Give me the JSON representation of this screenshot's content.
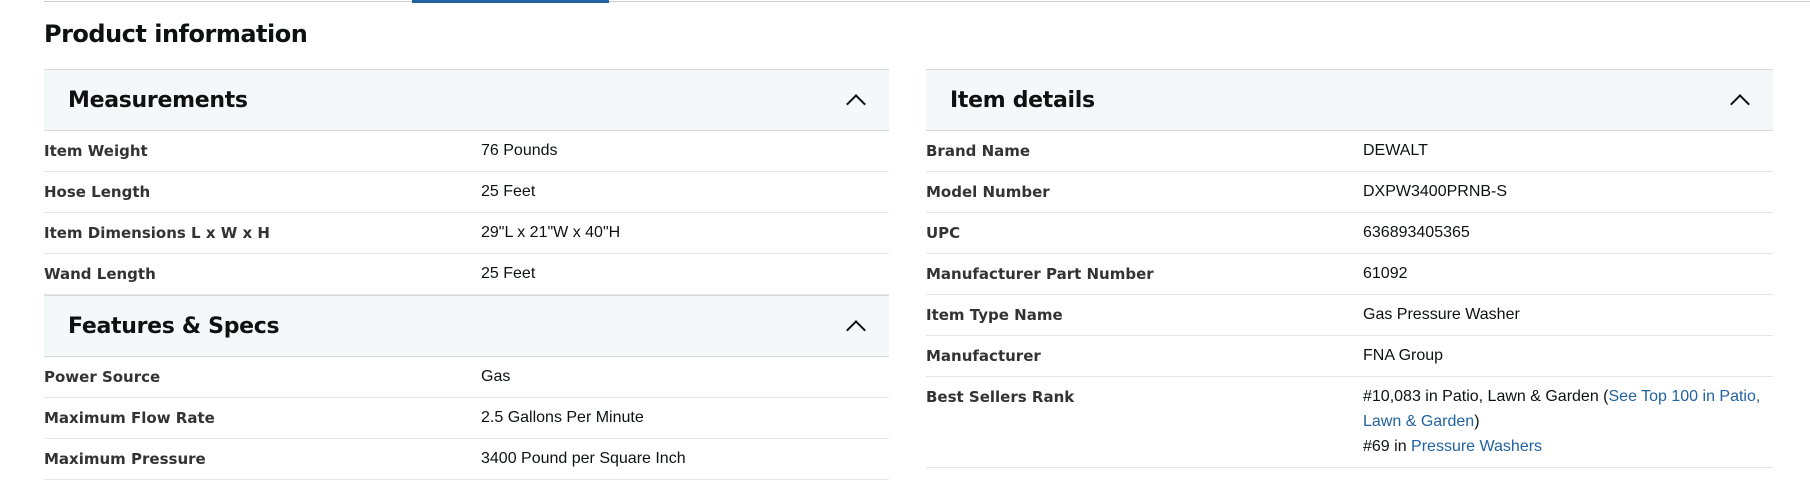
{
  "title": "Product information",
  "measurements": {
    "title": "Measurements",
    "rows": [
      {
        "k": "Item Weight",
        "v": "76 Pounds"
      },
      {
        "k": "Hose Length",
        "v": "25 Feet"
      },
      {
        "k": "Item Dimensions L x W x H",
        "v": "29\"L x 21\"W x 40\"H"
      },
      {
        "k": "Wand Length",
        "v": "25 Feet"
      }
    ]
  },
  "features": {
    "title": "Features & Specs",
    "rows": [
      {
        "k": "Power Source",
        "v": "Gas"
      },
      {
        "k": "Maximum Flow Rate",
        "v": "2.5 Gallons Per Minute"
      },
      {
        "k": "Maximum Pressure",
        "v": "3400 Pound per Square Inch"
      }
    ]
  },
  "details": {
    "title": "Item details",
    "rows": [
      {
        "k": "Brand Name",
        "v": "DEWALT"
      },
      {
        "k": "Model Number",
        "v": "DXPW3400PRNB-S"
      },
      {
        "k": "UPC",
        "v": "636893405365"
      },
      {
        "k": "Manufacturer Part Number",
        "v": "61092"
      },
      {
        "k": "Item Type Name",
        "v": "Gas Pressure Washer"
      },
      {
        "k": "Manufacturer",
        "v": "FNA Group"
      }
    ],
    "rank": {
      "k": "Best Sellers Rank",
      "r1": "#10,083 in Patio, Lawn & Garden (",
      "r1_link": "See Top 100 in Patio, Lawn & Garden",
      "r1_end": ")",
      "r2": "#69 in ",
      "r2_link": "Pressure Washers"
    }
  },
  "colors": {
    "link": "#2162a1",
    "header_bg": "#f5f8f9"
  }
}
